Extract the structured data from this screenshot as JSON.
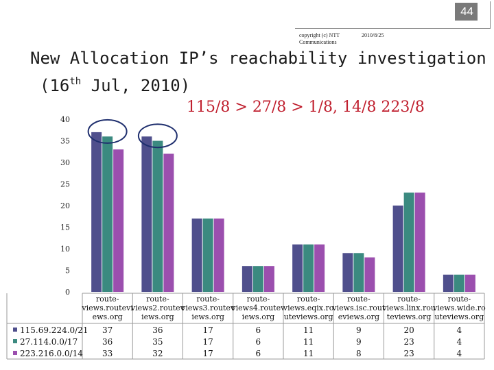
{
  "page_number": "44",
  "copyright": [
    "copyright (c) NTT",
    "Communications"
  ],
  "date": "2010/8/25",
  "title": "New Allocation IP’s reachability investigation",
  "subtitle_pre": "(16",
  "subtitle_sup": "th",
  "subtitle_post": " Jul, 2010)",
  "annotation": "115/8 > 27/8 > 1/8, 14/8 223/8",
  "colors": {
    "series": [
      "#4f4f8c",
      "#3b8a80",
      "#9b4fae"
    ],
    "highlight_ring": "#1f2f6e",
    "annotation": "#c0202f"
  },
  "chart_data": {
    "type": "bar",
    "categories": [
      "route-views.routeviews.org",
      "route-views2.routeviews.org",
      "route-views3.routeviews.org",
      "route-views4.routeviews.org",
      "route-views.eqix.routeviews.org",
      "route-views.isc.routeviews.org",
      "route-views.linx.routeviews.org",
      "route-views.wide.routeviews.org"
    ],
    "category_label_lines": [
      [
        "route-",
        "views.routevi",
        "ews.org"
      ],
      [
        "route-",
        "views2.routev",
        "iews.org"
      ],
      [
        "route-",
        "views3.routev",
        "iews.org"
      ],
      [
        "route-",
        "views4.routev",
        "iews.org"
      ],
      [
        "route-",
        "views.eqix.ro",
        "uteviews.org"
      ],
      [
        "route-",
        "views.isc.rout",
        "eviews.org"
      ],
      [
        "route-",
        "views.linx.rou",
        "teviews.org"
      ],
      [
        "route-",
        "views.wide.ro",
        "uteviews.org"
      ]
    ],
    "series": [
      {
        "name": "115.69.224.0/21",
        "values": [
          37,
          36,
          17,
          6,
          11,
          9,
          20,
          4
        ]
      },
      {
        "name": "27.114.0.0/17",
        "values": [
          36,
          35,
          17,
          6,
          11,
          9,
          23,
          4
        ]
      },
      {
        "name": "223.216.0.0/14",
        "values": [
          33,
          32,
          17,
          6,
          11,
          8,
          23,
          4
        ]
      }
    ],
    "ylim": [
      0,
      40
    ],
    "yticks": [
      0,
      5,
      10,
      15,
      20,
      25,
      30,
      35,
      40
    ],
    "grid": false,
    "legend": "data-table-left",
    "highlighted_categories": [
      0,
      1
    ]
  }
}
